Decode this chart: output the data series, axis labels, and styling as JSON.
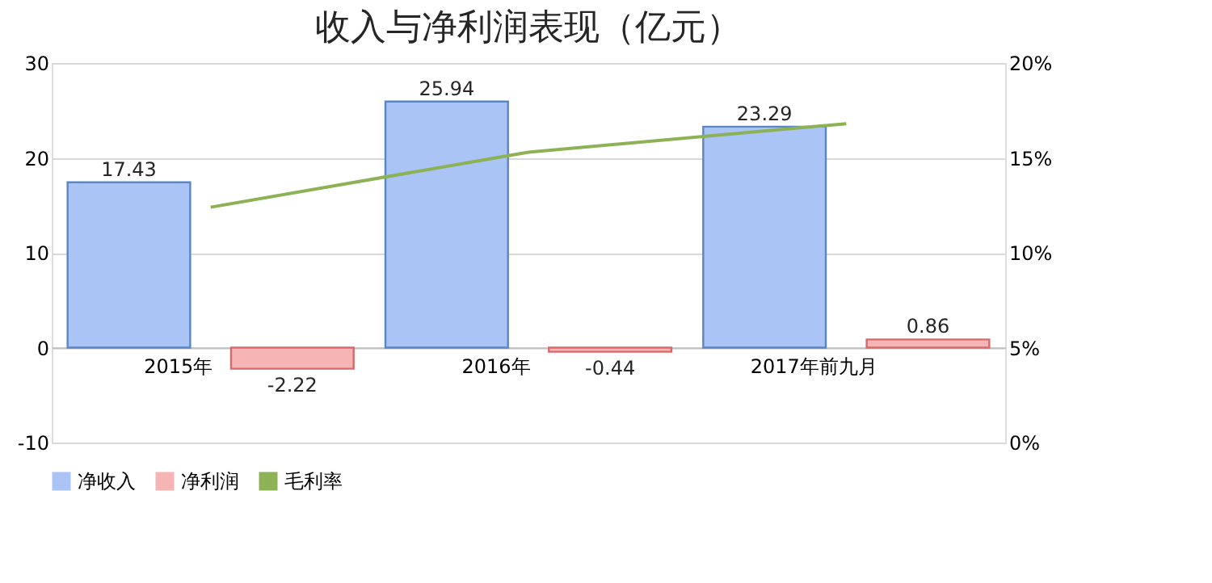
{
  "chart_data": {
    "type": "bar",
    "title": "收入与净利润表现（亿元）",
    "categories": [
      "2015年",
      "2016年",
      "2017年前九月"
    ],
    "series": [
      {
        "name": "净收入",
        "color": "#a9c4f5",
        "values": [
          17.43,
          25.94,
          23.29
        ],
        "value_labels": [
          "17.43",
          "25.94",
          "23.29"
        ]
      },
      {
        "name": "净利润",
        "color": "#f7b4b4",
        "values": [
          -2.22,
          -0.44,
          0.86
        ],
        "value_labels": [
          "-2.22",
          "-0.44",
          "0.86"
        ]
      },
      {
        "name": "毛利率",
        "color": "#8db255",
        "type": "line",
        "axis": "y2",
        "values": [
          12.4,
          15.3,
          16.8
        ]
      }
    ],
    "ylim": [
      -10,
      30
    ],
    "yticks": [
      -10,
      0,
      10,
      20,
      30
    ],
    "y2lim": [
      0,
      20
    ],
    "y2ticks": [
      {
        "value": 0,
        "label": "0%"
      },
      {
        "value": 5,
        "label": "5%"
      },
      {
        "value": 10,
        "label": "10%"
      },
      {
        "value": 15,
        "label": "15%"
      },
      {
        "value": 20,
        "label": "20%"
      }
    ],
    "grid": "y",
    "legend": "bottom"
  }
}
